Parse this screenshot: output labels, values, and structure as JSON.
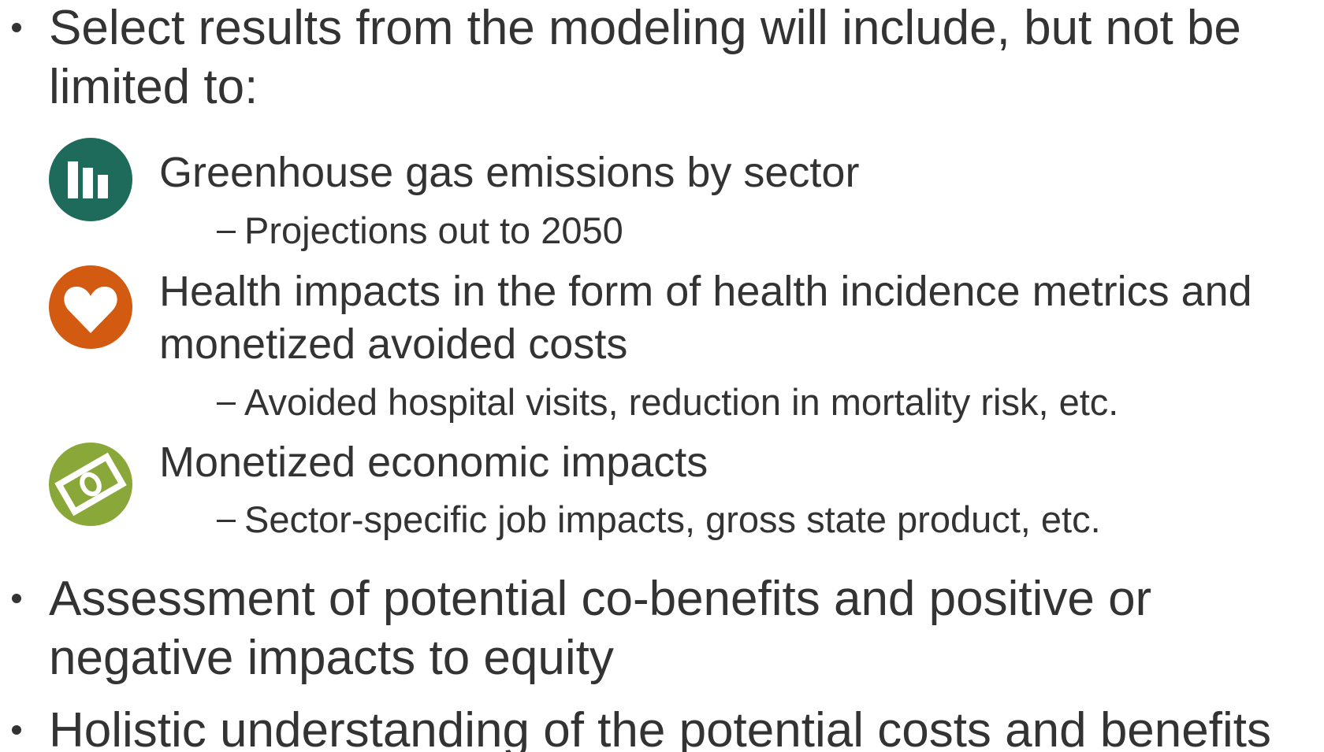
{
  "bullets": [
    {
      "lines": [
        "Select results from the modeling will include, but not be",
        "limited to:"
      ],
      "items": [
        {
          "lines": [
            "Greenhouse gas emissions by sector"
          ],
          "sub": "Projections out to 2050"
        },
        {
          "lines": [
            "Health impacts in the form of health incidence metrics and",
            "monetized avoided costs"
          ],
          "sub": "Avoided hospital visits, reduction in mortality risk, etc."
        },
        {
          "lines": [
            "Monetized economic impacts"
          ],
          "sub": "Sector-specific job impacts, gross state product, etc."
        }
      ]
    },
    {
      "lines": [
        "Assessment of potential co-benefits and positive or",
        "negative impacts to equity"
      ]
    },
    {
      "lines": [
        "Holistic understanding of the potential costs and benefits"
      ]
    }
  ]
}
